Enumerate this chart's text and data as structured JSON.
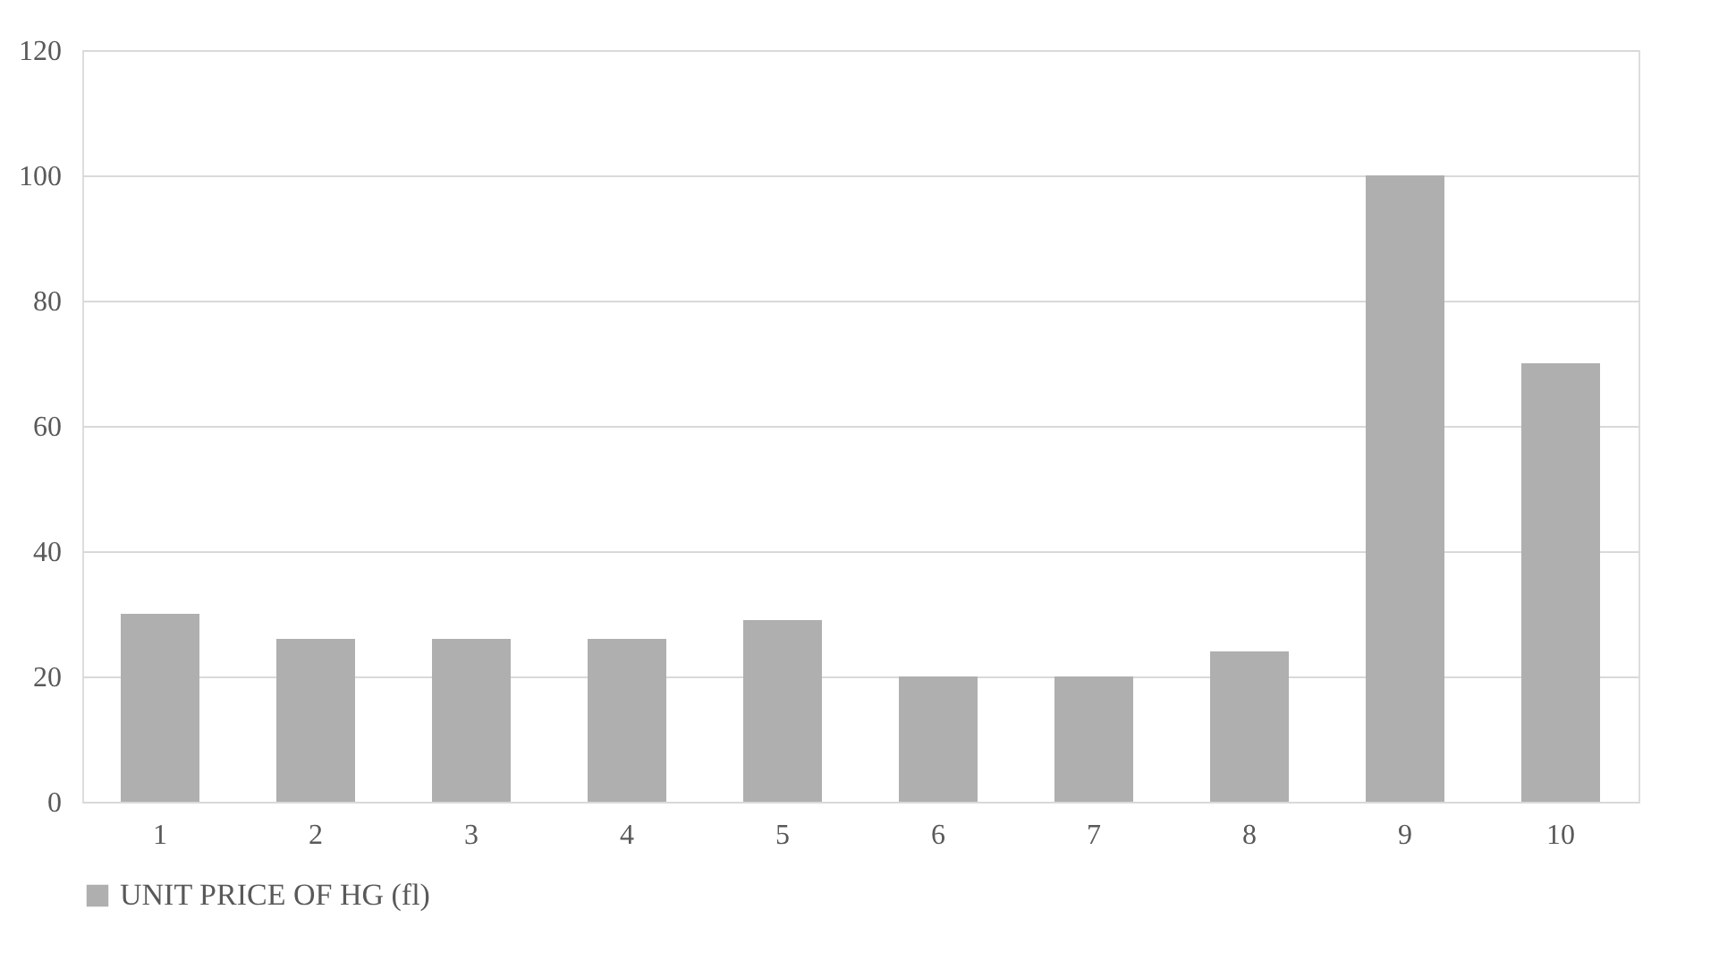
{
  "chart_data": {
    "type": "bar",
    "categories": [
      "1",
      "2",
      "3",
      "4",
      "5",
      "6",
      "7",
      "8",
      "9",
      "10"
    ],
    "series": [
      {
        "name": "UNIT PRICE OF HG (fl)",
        "color": "#afafaf",
        "values": [
          30,
          26,
          26,
          26,
          29,
          20,
          20,
          24,
          100,
          70
        ]
      }
    ],
    "ylim": [
      0,
      120
    ],
    "yticks": [
      0,
      20,
      40,
      60,
      80,
      100,
      120
    ],
    "grid": "y",
    "legend": "bottom"
  }
}
